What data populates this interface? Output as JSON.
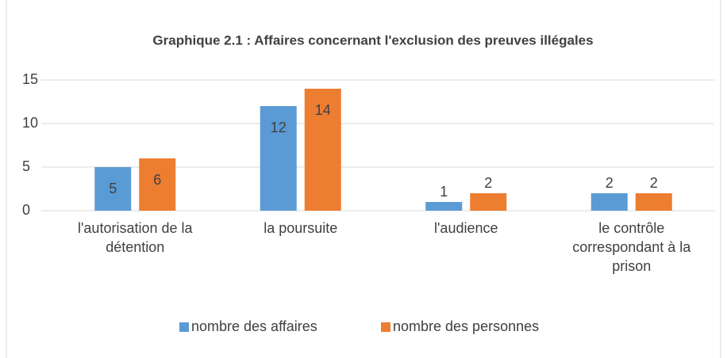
{
  "chart_data": {
    "type": "bar",
    "title": "Graphique 2.1 : Affaires concernant l'exclusion des preuves illégales",
    "categories": [
      "l'autorisation de la détention",
      "la poursuite",
      "l'audience",
      "le contrôle correspondant à la prison"
    ],
    "series": [
      {
        "name": "nombre des affaires",
        "color": "#5b9bd5",
        "values": [
          5,
          12,
          1,
          2
        ]
      },
      {
        "name": "nombre des personnes",
        "color": "#ed7d31",
        "values": [
          6,
          14,
          2,
          2
        ]
      }
    ],
    "ylim": [
      0,
      15
    ],
    "yticks": [
      0,
      5,
      10,
      15
    ],
    "grid": true,
    "legend": "bottom"
  }
}
